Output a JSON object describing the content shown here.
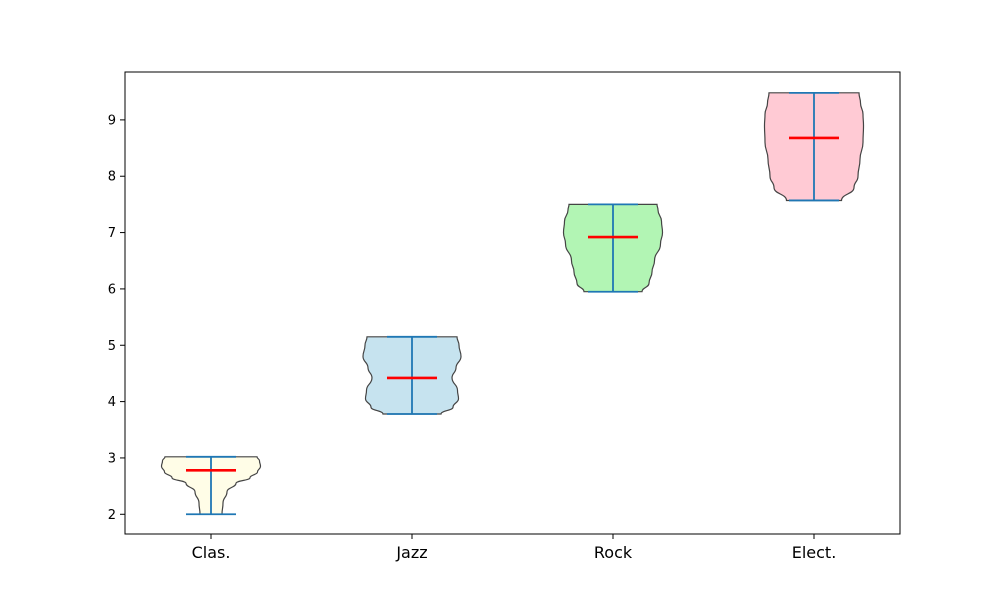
{
  "chart_data": {
    "type": "violin",
    "title": "",
    "xlabel": "",
    "ylabel": "",
    "ylim": [
      1.65,
      9.85
    ],
    "yticks": [
      2,
      3,
      4,
      5,
      6,
      7,
      8,
      9
    ],
    "categories": [
      "Clas.",
      "Jazz",
      "Rock",
      "Elect."
    ],
    "series": [
      {
        "min": 2.0,
        "max": 3.02,
        "median": 2.78,
        "color": "#fffde7",
        "profile": [
          [
            2.0,
            0.22
          ],
          [
            2.2,
            0.24
          ],
          [
            2.4,
            0.32
          ],
          [
            2.55,
            0.5
          ],
          [
            2.65,
            0.78
          ],
          [
            2.75,
            0.93
          ],
          [
            2.85,
            0.99
          ],
          [
            2.95,
            0.97
          ],
          [
            3.02,
            0.92
          ]
        ]
      },
      {
        "min": 3.78,
        "max": 5.15,
        "median": 4.42,
        "color": "#c6e3ef",
        "profile": [
          [
            3.78,
            0.58
          ],
          [
            3.9,
            0.82
          ],
          [
            4.05,
            0.93
          ],
          [
            4.2,
            0.91
          ],
          [
            4.42,
            0.8
          ],
          [
            4.6,
            0.88
          ],
          [
            4.8,
            0.98
          ],
          [
            5.0,
            0.94
          ],
          [
            5.15,
            0.9
          ]
        ]
      },
      {
        "min": 5.95,
        "max": 7.5,
        "median": 6.92,
        "color": "#b2f5b4",
        "profile": [
          [
            5.95,
            0.58
          ],
          [
            6.1,
            0.72
          ],
          [
            6.3,
            0.78
          ],
          [
            6.5,
            0.83
          ],
          [
            6.8,
            0.95
          ],
          [
            7.0,
            0.99
          ],
          [
            7.2,
            0.97
          ],
          [
            7.4,
            0.9
          ],
          [
            7.5,
            0.88
          ]
        ]
      },
      {
        "min": 7.57,
        "max": 9.48,
        "median": 8.68,
        "color": "#ffcad4",
        "profile": [
          [
            7.57,
            0.55
          ],
          [
            7.8,
            0.8
          ],
          [
            8.0,
            0.88
          ],
          [
            8.3,
            0.92
          ],
          [
            8.6,
            0.98
          ],
          [
            8.9,
            0.99
          ],
          [
            9.1,
            0.98
          ],
          [
            9.3,
            0.93
          ],
          [
            9.48,
            0.9
          ]
        ]
      }
    ],
    "styles": {
      "whisker_color": "#1f77b4",
      "median_color": "#ff0000",
      "outline_color": "#444444"
    }
  }
}
